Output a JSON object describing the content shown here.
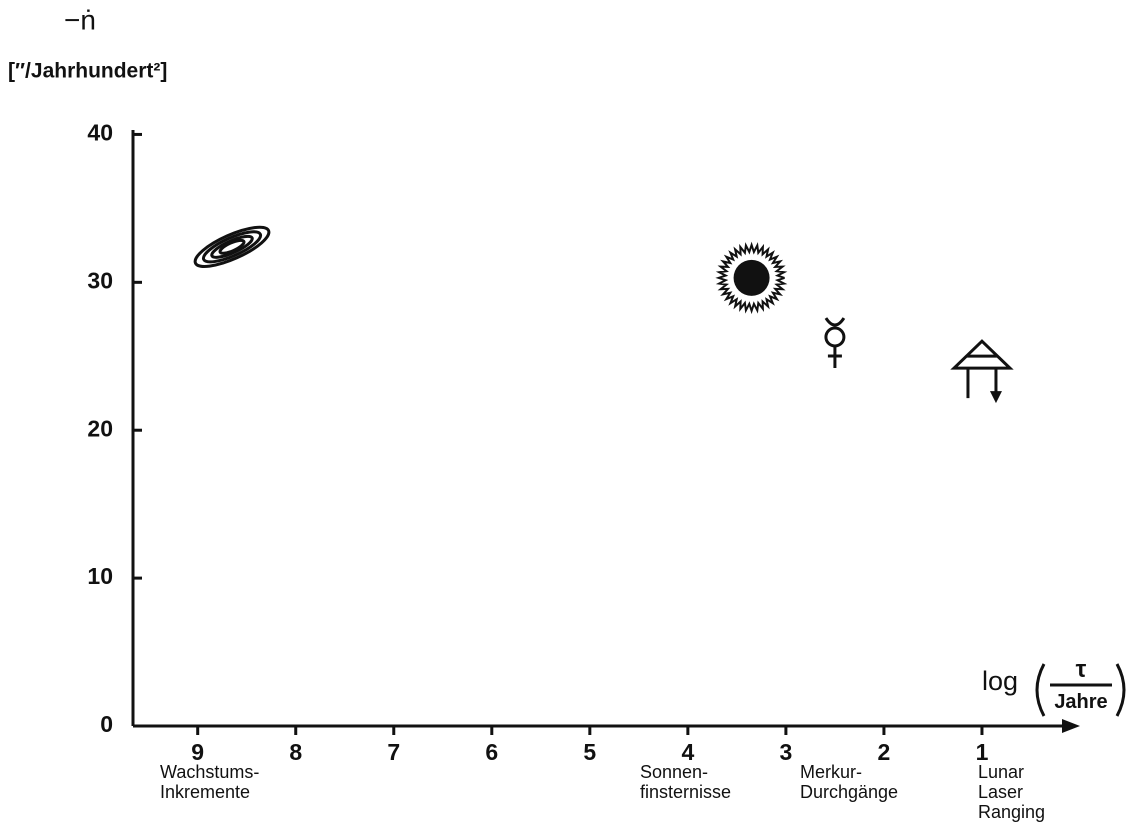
{
  "chart_data": {
    "type": "scatter",
    "y_label": [
      "−ṅ",
      "[″/Jahrhundert²]"
    ],
    "x_label": {
      "function": "log",
      "numerator": "τ",
      "denominator": "Jahre"
    },
    "xlim": [
      9.66,
      0
    ],
    "ylim": [
      0,
      40.3
    ],
    "xticks": [
      9,
      8,
      7,
      6,
      5,
      4,
      3,
      2,
      1
    ],
    "yticks": [
      0,
      10,
      20,
      30,
      40
    ],
    "color": "#111111",
    "x": [
      8.65,
      3.35,
      2.5,
      1
    ],
    "values": [
      32.4,
      30.3,
      26.1,
      24.4
    ],
    "markers": [
      "contours",
      "eclipse",
      "mercury",
      "laser"
    ],
    "labels": [
      [
        "Wachstums-",
        "Inkremente"
      ],
      [
        "Sonnen-",
        "finsternisse"
      ],
      [
        "Merkur-",
        "Durchgänge"
      ],
      [
        "Lunar",
        "Laser",
        "Ranging"
      ]
    ]
  }
}
